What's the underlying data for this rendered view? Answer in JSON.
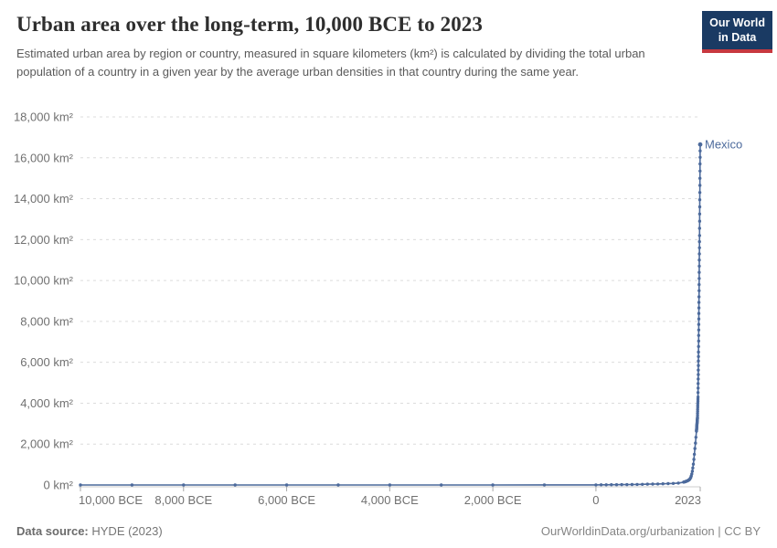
{
  "header": {
    "title": "Urban area over the long-term, 10,000 BCE to 2023",
    "subtitle": "Estimated urban area by region or country, measured in square kilometers (km²) is calculated by dividing the total urban population of a country in a given year by the average urban densities in that country during the same year.",
    "logo": {
      "line1": "Our World",
      "line2": "in Data"
    }
  },
  "footer": {
    "source_label": "Data source:",
    "source_value": "HYDE (2023)",
    "link_text": "OurWorldinData.org/urbanization | CC BY"
  },
  "colors": {
    "series": "#4c6a9c",
    "grid": "#dcdcdc",
    "axis": "#cccccc",
    "tick": "#a8a8a8",
    "tick_label": "#707070",
    "logo_bg": "#1a3a63",
    "logo_bar": "#c7383f"
  },
  "chart_data": {
    "type": "line",
    "title": "Urban area over the long-term, 10,000 BCE to 2023",
    "xlabel": "",
    "ylabel": "",
    "xlim": [
      -10000,
      2023
    ],
    "ylim": [
      0,
      18000
    ],
    "grid": "horizontal-dashed",
    "legend_position": "end-of-line",
    "yticks": [
      {
        "value": 0,
        "label": "0 km²"
      },
      {
        "value": 2000,
        "label": "2,000 km²"
      },
      {
        "value": 4000,
        "label": "4,000 km²"
      },
      {
        "value": 6000,
        "label": "6,000 km²"
      },
      {
        "value": 8000,
        "label": "8,000 km²"
      },
      {
        "value": 10000,
        "label": "10,000 km²"
      },
      {
        "value": 12000,
        "label": "12,000 km²"
      },
      {
        "value": 14000,
        "label": "14,000 km²"
      },
      {
        "value": 16000,
        "label": "16,000 km²"
      },
      {
        "value": 18000,
        "label": "18,000 km²"
      }
    ],
    "xticks": [
      {
        "value": -10000,
        "label": "10,000 BCE",
        "align": "start"
      },
      {
        "value": -8000,
        "label": "8,000 BCE",
        "align": "middle"
      },
      {
        "value": -6000,
        "label": "6,000 BCE",
        "align": "middle"
      },
      {
        "value": -4000,
        "label": "4,000 BCE",
        "align": "middle"
      },
      {
        "value": -2000,
        "label": "2,000 BCE",
        "align": "middle"
      },
      {
        "value": 0,
        "label": "0",
        "align": "middle"
      },
      {
        "value": 2023,
        "label": "2023",
        "align": "end"
      }
    ],
    "series": [
      {
        "name": "Mexico",
        "color": "#4c6a9c",
        "points": [
          [
            -10000,
            0
          ],
          [
            -9000,
            0
          ],
          [
            -8000,
            0
          ],
          [
            -7000,
            0
          ],
          [
            -6000,
            0
          ],
          [
            -5000,
            0
          ],
          [
            -4000,
            1
          ],
          [
            -3000,
            1
          ],
          [
            -2000,
            2
          ],
          [
            -1000,
            4
          ],
          [
            0,
            6
          ],
          [
            100,
            8
          ],
          [
            200,
            10
          ],
          [
            300,
            12
          ],
          [
            400,
            14
          ],
          [
            500,
            17
          ],
          [
            600,
            20
          ],
          [
            700,
            24
          ],
          [
            800,
            28
          ],
          [
            900,
            33
          ],
          [
            1000,
            38
          ],
          [
            1100,
            44
          ],
          [
            1200,
            51
          ],
          [
            1300,
            58
          ],
          [
            1400,
            66
          ],
          [
            1500,
            75
          ],
          [
            1600,
            95
          ],
          [
            1700,
            140
          ],
          [
            1710,
            146
          ],
          [
            1720,
            153
          ],
          [
            1730,
            160
          ],
          [
            1740,
            168
          ],
          [
            1750,
            177
          ],
          [
            1760,
            187
          ],
          [
            1770,
            198
          ],
          [
            1780,
            210
          ],
          [
            1790,
            224
          ],
          [
            1800,
            240
          ],
          [
            1810,
            260
          ],
          [
            1820,
            285
          ],
          [
            1830,
            320
          ],
          [
            1840,
            370
          ],
          [
            1850,
            440
          ],
          [
            1860,
            540
          ],
          [
            1870,
            670
          ],
          [
            1880,
            830
          ],
          [
            1890,
            1020
          ],
          [
            1900,
            1250
          ],
          [
            1910,
            1500
          ],
          [
            1920,
            1780
          ],
          [
            1930,
            2050
          ],
          [
            1940,
            2330
          ],
          [
            1950,
            2630
          ],
          [
            1951,
            2663
          ],
          [
            1952,
            2697
          ],
          [
            1953,
            2730
          ],
          [
            1954,
            2764
          ],
          [
            1955,
            2797
          ],
          [
            1956,
            2831
          ],
          [
            1957,
            2864
          ],
          [
            1958,
            2898
          ],
          [
            1959,
            2931
          ],
          [
            1960,
            2965
          ],
          [
            1961,
            2998
          ],
          [
            1962,
            3032
          ],
          [
            1963,
            3065
          ],
          [
            1964,
            3099
          ],
          [
            1965,
            3132
          ],
          [
            1966,
            3166
          ],
          [
            1967,
            3199
          ],
          [
            1968,
            3233
          ],
          [
            1969,
            3266
          ],
          [
            1970,
            3300
          ],
          [
            1971,
            3400
          ],
          [
            1972,
            3500
          ],
          [
            1973,
            3600
          ],
          [
            1974,
            3700
          ],
          [
            1975,
            3800
          ],
          [
            1976,
            3900
          ],
          [
            1977,
            4000
          ],
          [
            1978,
            4100
          ],
          [
            1979,
            4200
          ],
          [
            1980,
            4300
          ],
          [
            1981,
            4520
          ],
          [
            1982,
            4740
          ],
          [
            1983,
            4960
          ],
          [
            1984,
            5180
          ],
          [
            1985,
            5400
          ],
          [
            1986,
            5620
          ],
          [
            1987,
            5840
          ],
          [
            1988,
            6060
          ],
          [
            1989,
            6280
          ],
          [
            1990,
            6500
          ],
          [
            1991,
            6770
          ],
          [
            1992,
            7040
          ],
          [
            1993,
            7310
          ],
          [
            1994,
            7580
          ],
          [
            1995,
            7850
          ],
          [
            1996,
            8120
          ],
          [
            1997,
            8390
          ],
          [
            1998,
            8660
          ],
          [
            1999,
            8930
          ],
          [
            2000,
            9200
          ],
          [
            2001,
            9500
          ],
          [
            2002,
            9800
          ],
          [
            2003,
            10100
          ],
          [
            2004,
            10400
          ],
          [
            2005,
            10700
          ],
          [
            2006,
            11000
          ],
          [
            2007,
            11300
          ],
          [
            2008,
            11600
          ],
          [
            2009,
            11900
          ],
          [
            2010,
            12200
          ],
          [
            2011,
            12550
          ],
          [
            2012,
            12900
          ],
          [
            2013,
            13250
          ],
          [
            2014,
            13600
          ],
          [
            2015,
            13950
          ],
          [
            2016,
            14300
          ],
          [
            2017,
            14650
          ],
          [
            2018,
            15000
          ],
          [
            2019,
            15350
          ],
          [
            2020,
            15700
          ],
          [
            2021,
            16020
          ],
          [
            2022,
            16340
          ],
          [
            2023,
            16650
          ]
        ]
      }
    ]
  }
}
